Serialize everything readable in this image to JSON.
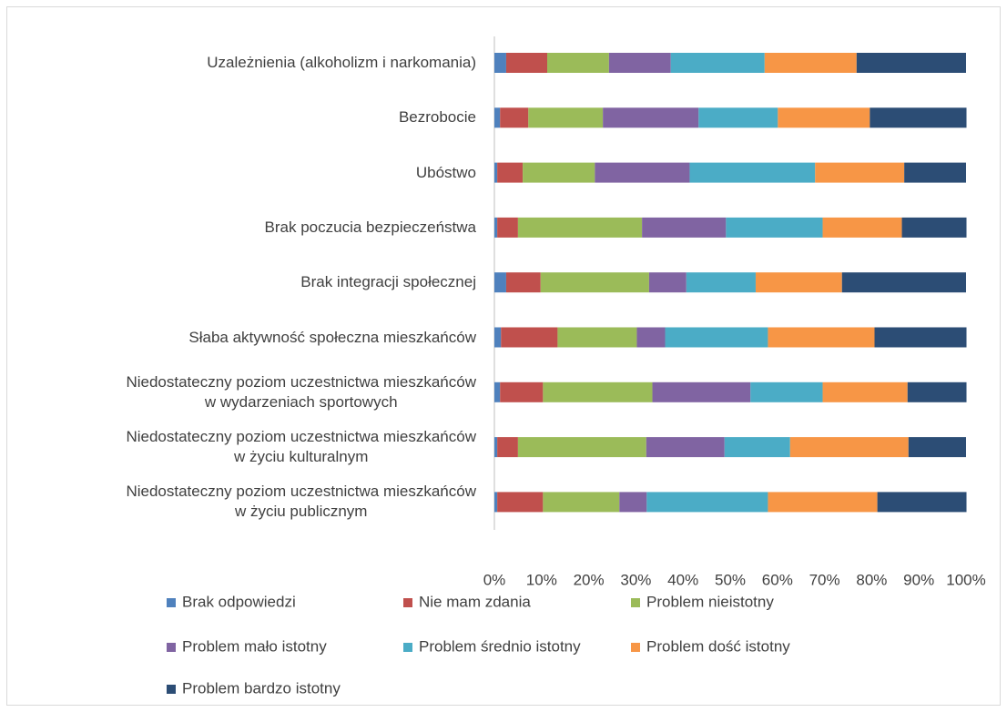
{
  "chart_data": {
    "type": "bar",
    "orientation": "horizontal",
    "stacked": true,
    "categories": [
      "Uzależnienia (alkoholizm i narkomania)",
      "Bezrobocie",
      "Ubóstwo",
      "Brak poczucia bezpieczeństwa",
      "Brak integracji społecznej",
      "Słaba aktywność społeczna mieszkańców",
      "Niedostateczny poziom uczestnictwa mieszkańców\nw wydarzeniach sportowych",
      "Niedostateczny poziom uczestnictwa mieszkańców\nw życiu kulturalnym",
      "Niedostateczny poziom uczestnictwa mieszkańców\nw życiu publicznym"
    ],
    "series": [
      {
        "name": "Brak odpowiedzi",
        "color": "#4f81bd",
        "values": [
          2.5,
          1.2,
          0.6,
          0.6,
          2.5,
          1.4,
          1.2,
          0.6,
          0.6
        ]
      },
      {
        "name": "Nie mam zdania",
        "color": "#c0504d",
        "values": [
          8.7,
          6.0,
          5.4,
          4.4,
          7.3,
          12.0,
          9.1,
          4.4,
          9.7
        ]
      },
      {
        "name": "Problem nieistotny",
        "color": "#9bbb59",
        "values": [
          13.1,
          15.8,
          15.3,
          26.3,
          23.0,
          16.8,
          23.2,
          27.2,
          16.2
        ]
      },
      {
        "name": "Problem mało istotny",
        "color": "#8064a2",
        "values": [
          13.1,
          20.3,
          20.1,
          17.8,
          7.9,
          6.0,
          20.8,
          16.6,
          5.8
        ]
      },
      {
        "name": "Problem średnio istotny",
        "color": "#4bacc6",
        "values": [
          19.9,
          16.8,
          26.6,
          20.5,
          14.7,
          21.8,
          15.3,
          13.9,
          25.7
        ]
      },
      {
        "name": "Problem dość istotny",
        "color": "#f79646",
        "values": [
          19.5,
          19.5,
          18.9,
          16.8,
          18.3,
          22.6,
          18.0,
          25.1,
          23.2
        ]
      },
      {
        "name": "Problem bardzo istotny",
        "color": "#2c4d75",
        "values": [
          23.2,
          20.5,
          13.1,
          13.7,
          26.3,
          19.5,
          12.5,
          12.2,
          18.9
        ]
      }
    ],
    "xlim": [
      0,
      100
    ],
    "xticks": [
      {
        "value": 0,
        "label": "0%"
      },
      {
        "value": 10,
        "label": "10%"
      },
      {
        "value": 20,
        "label": "20%"
      },
      {
        "value": 30,
        "label": "30%"
      },
      {
        "value": 40,
        "label": "40%"
      },
      {
        "value": 50,
        "label": "50%"
      },
      {
        "value": 60,
        "label": "60%"
      },
      {
        "value": 70,
        "label": "70%"
      },
      {
        "value": 80,
        "label": "80%"
      },
      {
        "value": 90,
        "label": "90%"
      },
      {
        "value": 100,
        "label": "100%"
      }
    ],
    "legend": "bottom"
  }
}
